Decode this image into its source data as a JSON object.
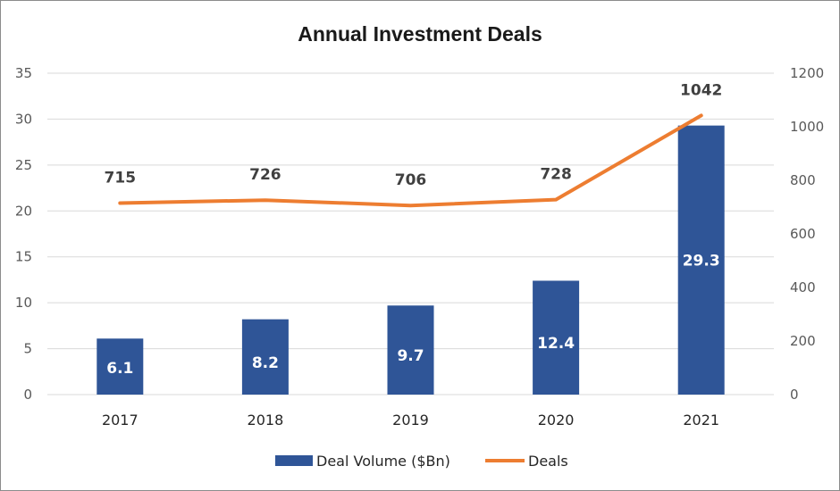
{
  "chart_data": {
    "type": "bar",
    "title": "Annual Investment Deals",
    "categories": [
      "2017",
      "2018",
      "2019",
      "2020",
      "2021"
    ],
    "series": [
      {
        "name": "Deal Volume ($Bn)",
        "type": "bar",
        "axis": "left",
        "color": "#2f5597",
        "values": [
          6.1,
          8.2,
          9.7,
          12.4,
          29.3
        ],
        "labels": [
          "6.1",
          "8.2",
          "9.7",
          "12.4",
          "29.3"
        ]
      },
      {
        "name": "Deals",
        "type": "line",
        "axis": "right",
        "color": "#ed7d31",
        "values": [
          715,
          726,
          706,
          728,
          1042
        ],
        "labels": [
          "715",
          "726",
          "706",
          "728",
          "1042"
        ]
      }
    ],
    "y_left": {
      "range": [
        0,
        35
      ],
      "ticks": [
        "0",
        "5",
        "10",
        "15",
        "20",
        "25",
        "30",
        "35"
      ]
    },
    "y_right": {
      "range": [
        0,
        1200
      ],
      "ticks": [
        "0",
        "200",
        "400",
        "600",
        "800",
        "1000",
        "1200"
      ]
    },
    "grid": true,
    "legend_position": "bottom"
  }
}
